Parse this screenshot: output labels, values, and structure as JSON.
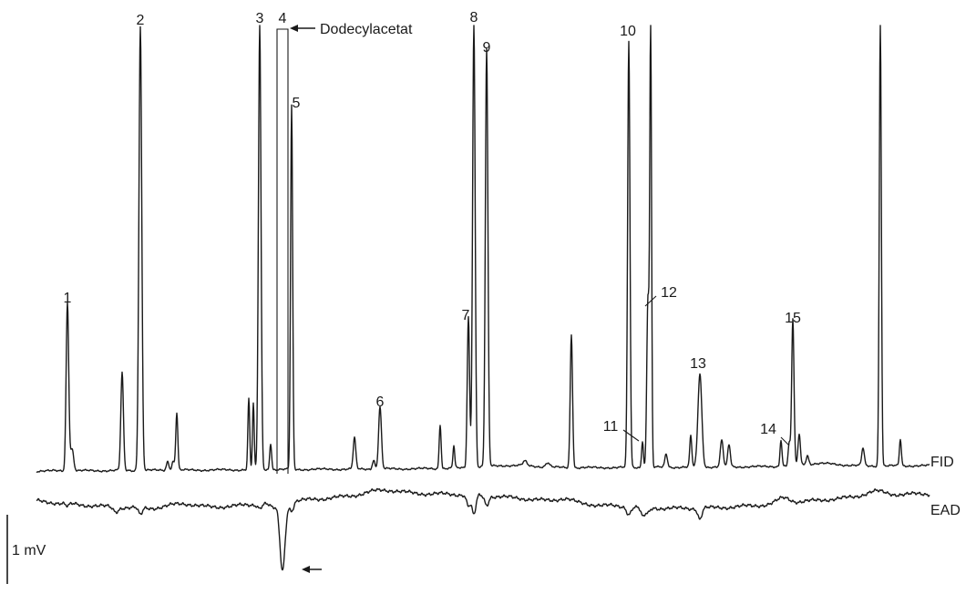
{
  "chart_data": {
    "type": "line",
    "title": "",
    "xlabel": "",
    "ylabel": "",
    "series": [
      {
        "name": "FID",
        "label": "FID"
      },
      {
        "name": "EAD",
        "label": "EAD"
      }
    ],
    "scale_bar": {
      "label": "1 mV",
      "value_mV": 1
    },
    "reference": {
      "label": "Dodecylacetat",
      "peak": "4"
    },
    "peaks": [
      {
        "label": "1",
        "rel_height": 0.38,
        "ead_response": 0.03
      },
      {
        "label": "2",
        "rel_height": 1.0,
        "ead_response": 0.08
      },
      {
        "label": "3",
        "rel_height": 1.0,
        "ead_response": 0.04
      },
      {
        "label": "4",
        "rel_height": 1.0,
        "ead_response": 0.75
      },
      {
        "label": "5",
        "rel_height": 0.82,
        "ead_response": 0.1
      },
      {
        "label": "6",
        "rel_height": 0.14,
        "ead_response": 0.0
      },
      {
        "label": "7",
        "rel_height": 0.34,
        "ead_response": 0.12
      },
      {
        "label": "8",
        "rel_height": 1.0,
        "ead_response": 0.22
      },
      {
        "label": "9",
        "rel_height": 0.94,
        "ead_response": 0.1
      },
      {
        "label": "10",
        "rel_height": 0.96,
        "ead_response": 0.08
      },
      {
        "label": "11",
        "rel_height": 0.06,
        "ead_response": 0.05
      },
      {
        "label": "12",
        "rel_height": 0.38,
        "ead_response": 0.06
      },
      {
        "label": "13",
        "rel_height": 0.21,
        "ead_response": 0.12
      },
      {
        "label": "14",
        "rel_height": 0.05,
        "ead_response": 0.0
      },
      {
        "label": "15",
        "rel_height": 0.33,
        "ead_response": 0.0
      }
    ]
  }
}
